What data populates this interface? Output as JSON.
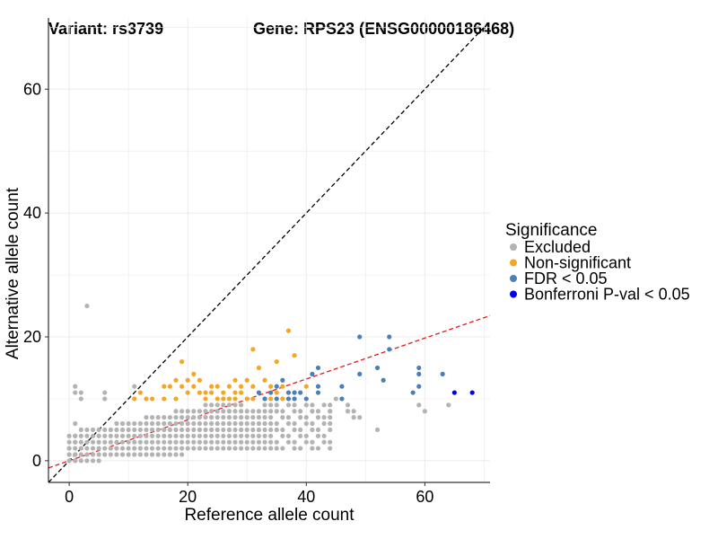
{
  "header": {
    "variant": "Variant: rs3739",
    "gene": "Gene: RPS23 (ENSG00000186468)"
  },
  "chart_data": {
    "type": "scatter",
    "title": "Variant: rs3739    Gene: RPS23 (ENSG00000186468)",
    "xlabel": "Reference allele count",
    "ylabel": "Alternative allele count",
    "xlim": [
      -3.5,
      71
    ],
    "ylim": [
      -3.5,
      71.5
    ],
    "xticks": [
      0,
      20,
      40,
      60
    ],
    "yticks": [
      0,
      20,
      40,
      60
    ],
    "grid": true,
    "legend": {
      "title": "Significance",
      "placement": "right",
      "items": [
        {
          "label": "Excluded",
          "color": "#B3B3B3"
        },
        {
          "label": "Non-significant",
          "color": "#F5A623"
        },
        {
          "label": "FDR < 0.05",
          "color": "#4A7FB8"
        },
        {
          "label": "Bonferroni P-val < 0.05",
          "color": "#0000EE"
        }
      ]
    },
    "reference_lines": [
      {
        "name": "identity",
        "slope": 1,
        "intercept": 0,
        "color": "#000000",
        "style": "dashed"
      },
      {
        "name": "fit",
        "slope": 0.33,
        "intercept": 0,
        "color": "#E41A1C",
        "style": "dashed"
      }
    ],
    "series": [
      {
        "name": "Excluded",
        "color": "#B3B3B3",
        "points": [
          [
            0,
            1
          ],
          [
            0,
            2
          ],
          [
            1,
            0
          ],
          [
            1,
            1
          ],
          [
            1,
            3
          ],
          [
            1,
            4
          ],
          [
            1,
            6
          ],
          [
            1,
            11
          ],
          [
            1,
            12
          ],
          [
            2,
            5
          ],
          [
            2,
            10
          ],
          [
            2,
            11
          ],
          [
            3,
            25
          ],
          [
            6,
            10
          ],
          [
            6,
            11
          ],
          [
            11,
            12
          ],
          [
            44,
            7
          ],
          [
            44,
            8
          ],
          [
            45,
            10
          ],
          [
            47,
            8
          ],
          [
            47,
            9
          ],
          [
            48,
            7
          ],
          [
            48,
            8
          ],
          [
            49,
            7
          ],
          [
            52,
            5
          ],
          [
            59,
            9
          ],
          [
            60,
            8
          ],
          [
            64,
            9
          ]
        ]
      },
      {
        "name": "Non-significant",
        "color": "#F5A623",
        "points": [
          [
            11,
            10
          ],
          [
            12,
            11
          ],
          [
            13,
            10
          ],
          [
            14,
            10
          ],
          [
            16,
            10
          ],
          [
            16,
            12
          ],
          [
            17,
            12
          ],
          [
            18,
            10
          ],
          [
            18,
            13
          ],
          [
            19,
            12
          ],
          [
            19,
            16
          ],
          [
            20,
            11
          ],
          [
            20,
            13
          ],
          [
            21,
            12
          ],
          [
            21,
            14
          ],
          [
            22,
            11
          ],
          [
            22,
            13
          ],
          [
            23,
            10
          ],
          [
            23,
            11
          ],
          [
            24,
            11
          ],
          [
            24,
            12
          ],
          [
            25,
            10
          ],
          [
            25,
            12
          ],
          [
            26,
            10
          ],
          [
            26,
            11
          ],
          [
            27,
            10
          ],
          [
            27,
            12
          ],
          [
            28,
            10
          ],
          [
            28,
            11
          ],
          [
            28,
            13
          ],
          [
            29,
            11
          ],
          [
            29,
            12
          ],
          [
            30,
            10
          ],
          [
            30,
            13
          ],
          [
            31,
            10
          ],
          [
            31,
            12
          ],
          [
            31,
            18
          ],
          [
            32,
            11
          ],
          [
            32,
            15
          ],
          [
            33,
            10
          ],
          [
            33,
            13
          ],
          [
            34,
            10
          ],
          [
            34,
            12
          ],
          [
            35,
            11
          ],
          [
            35,
            16
          ],
          [
            36,
            10
          ],
          [
            36,
            12
          ],
          [
            37,
            21
          ],
          [
            38,
            11
          ],
          [
            38,
            17
          ],
          [
            40,
            12
          ]
        ]
      },
      {
        "name": "FDR < 0.05",
        "color": "#4A7FB8",
        "points": [
          [
            32,
            11
          ],
          [
            33,
            10
          ],
          [
            34,
            11
          ],
          [
            35,
            10
          ],
          [
            35,
            12
          ],
          [
            36,
            13
          ],
          [
            37,
            10
          ],
          [
            37,
            11
          ],
          [
            38,
            10
          ],
          [
            38,
            11
          ],
          [
            39,
            11
          ],
          [
            40,
            10
          ],
          [
            41,
            14
          ],
          [
            42,
            11
          ],
          [
            42,
            15
          ],
          [
            42,
            12
          ],
          [
            46,
            10
          ],
          [
            46,
            12
          ],
          [
            49,
            14
          ],
          [
            49,
            20
          ],
          [
            52,
            15
          ],
          [
            53,
            13
          ],
          [
            54,
            18
          ],
          [
            54,
            20
          ],
          [
            58,
            11
          ],
          [
            59,
            12
          ],
          [
            59,
            14
          ],
          [
            59,
            15
          ],
          [
            63,
            14
          ]
        ]
      },
      {
        "name": "Bonferroni P-val < 0.05",
        "color": "#0000EE",
        "points": [
          [
            65,
            11
          ],
          [
            68,
            11
          ]
        ]
      }
    ]
  }
}
